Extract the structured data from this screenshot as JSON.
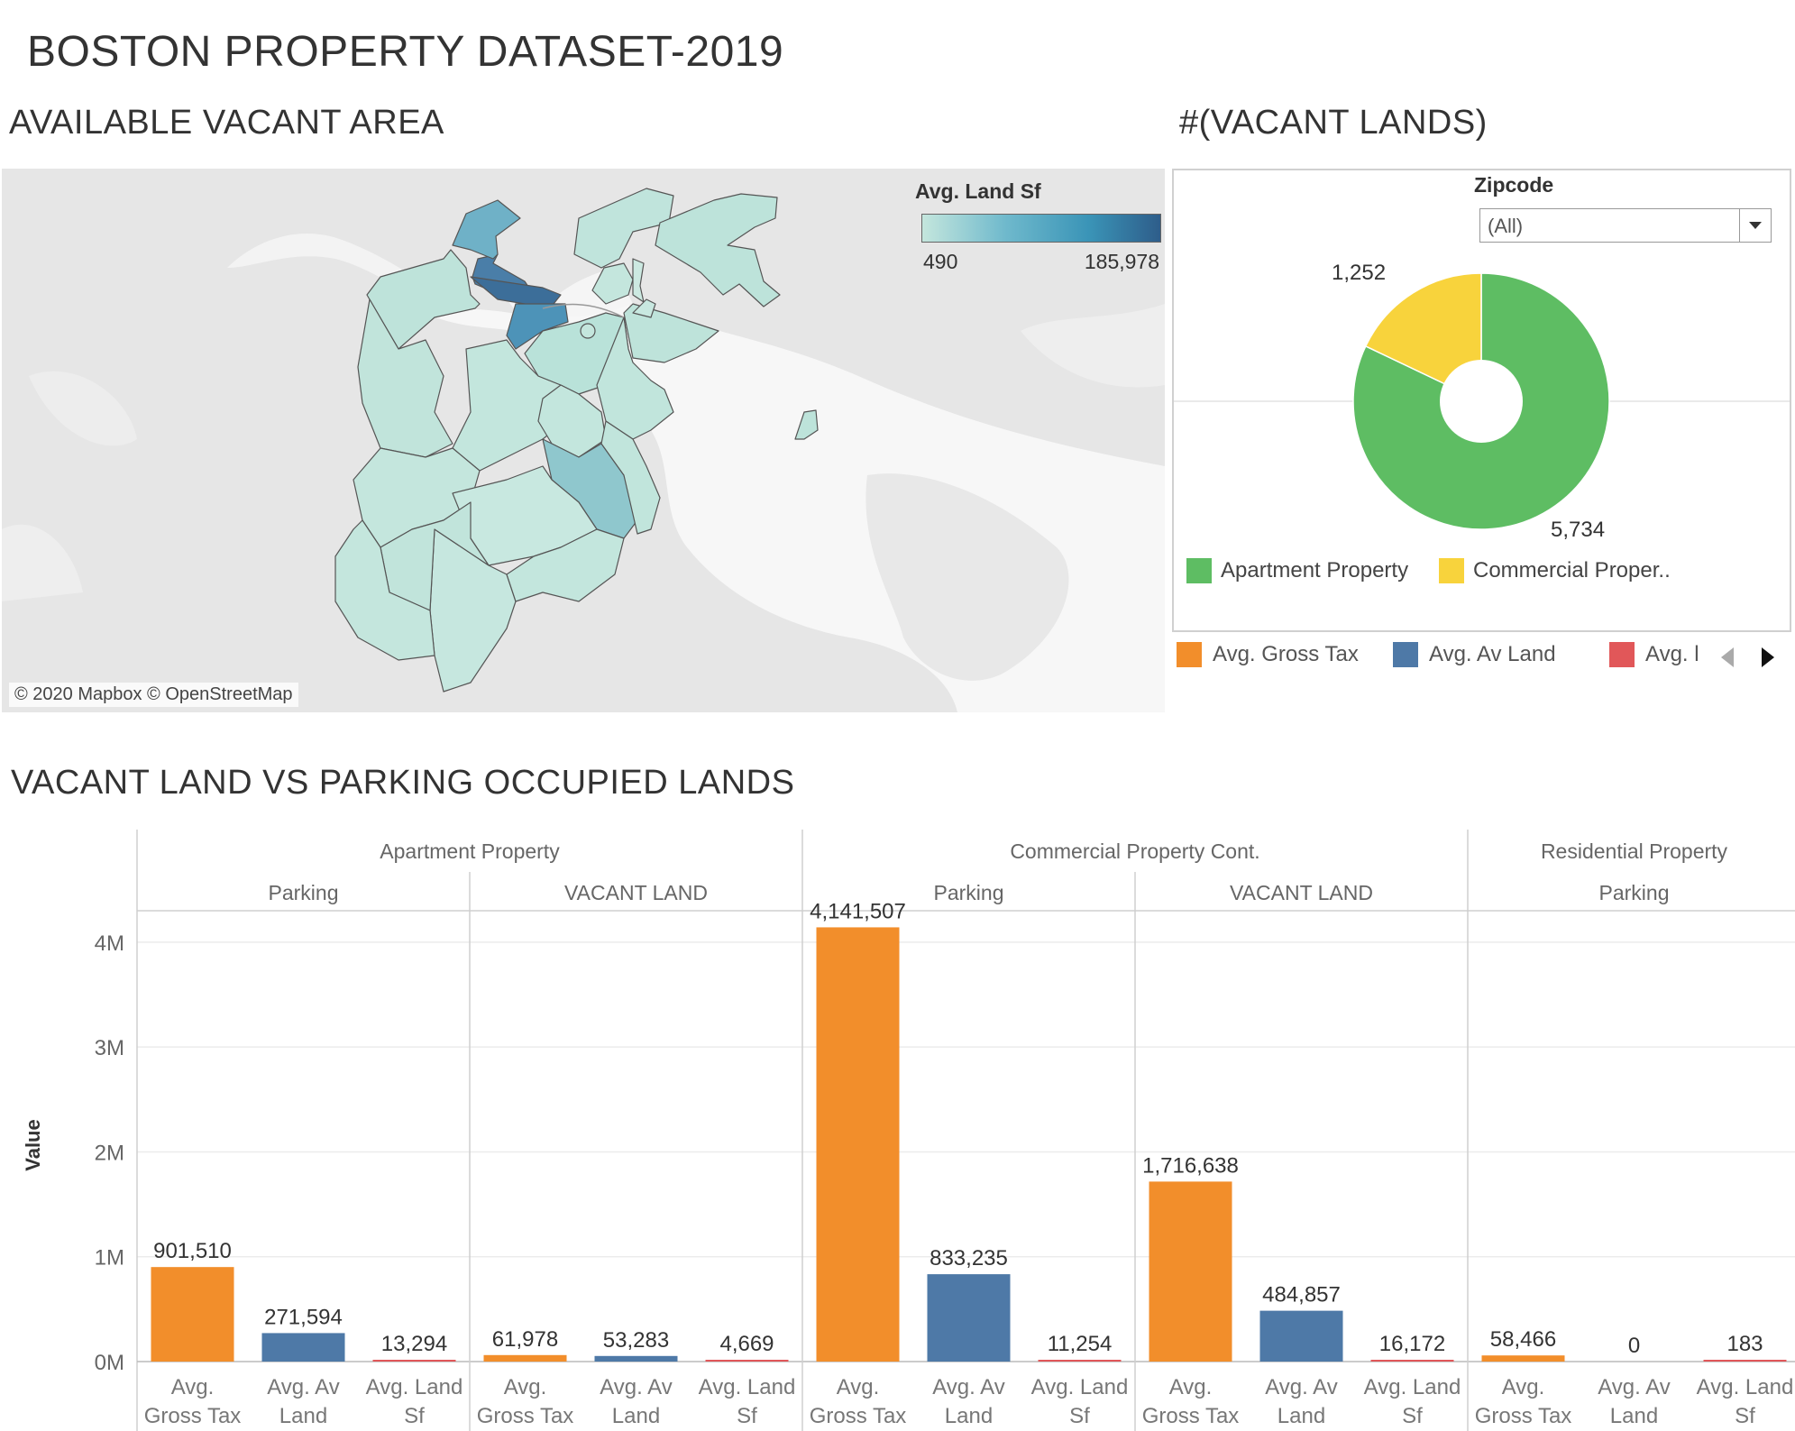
{
  "dashboard": {
    "title": "BOSTON PROPERTY DATASET-2019"
  },
  "map": {
    "title": "AVAILABLE VACANT AREA",
    "legend_title": "Avg. Land Sf",
    "legend_min": "490",
    "legend_max": "185,978",
    "color_low": "#c4e6dd",
    "color_high": "#2e5d8a",
    "attribution": "© 2020 Mapbox © OpenStreetMap"
  },
  "donut": {
    "title": "#(VACANT LANDS)",
    "filter_label": "Zipcode",
    "filter_value": "(All)",
    "legend": [
      {
        "label": "Apartment Property",
        "color": "#5ebd63"
      },
      {
        "label": "Commercial Proper..",
        "color": "#f8d33c"
      }
    ],
    "chart_data": {
      "type": "pie",
      "categories": [
        "Apartment Property",
        "Commercial Property Cont."
      ],
      "values": [
        5734,
        1252
      ],
      "labels": [
        "5,734",
        "1,252"
      ]
    }
  },
  "bar_legend": {
    "items": [
      {
        "label": "Avg. Gross Tax",
        "color": "#f28e2b"
      },
      {
        "label": "Avg. Av Land",
        "color": "#4e79a7"
      },
      {
        "label": "Avg. l",
        "color": "#e15759"
      }
    ],
    "prev_icon": "triangle-left-icon",
    "next_icon": "triangle-right-icon"
  },
  "bars": {
    "title": "VACANT LAND VS PARKING OCCUPIED LANDS",
    "chart_data": {
      "type": "bar",
      "ylabel": "Value",
      "ylim": [
        0,
        4300000
      ],
      "yticks": [
        0,
        1000000,
        2000000,
        3000000,
        4000000
      ],
      "ytick_labels": [
        "0M",
        "1M",
        "2M",
        "3M",
        "4M"
      ],
      "categories": [
        "Avg. Gross Tax",
        "Avg. Av Land",
        "Avg. Land Sf"
      ],
      "category_label_lines": [
        [
          "Avg.",
          "Gross Tax"
        ],
        [
          "Avg. Av",
          "Land"
        ],
        [
          "Avg. Land",
          "Sf"
        ]
      ],
      "colors": [
        "#f28e2b",
        "#4e79a7",
        "#e15759"
      ],
      "groups": [
        {
          "label": "Apartment Property",
          "panels": [
            {
              "label": "Parking",
              "values": [
                901510,
                271594,
                13294
              ],
              "labels": [
                "901,510",
                "271,594",
                "13,294"
              ]
            },
            {
              "label": "VACANT LAND",
              "values": [
                61978,
                53283,
                4669
              ],
              "labels": [
                "61,978",
                "53,283",
                "4,669"
              ]
            }
          ]
        },
        {
          "label": "Commercial Property Cont.",
          "panels": [
            {
              "label": "Parking",
              "values": [
                4141507,
                833235,
                11254
              ],
              "labels": [
                "4,141,507",
                "833,235",
                "11,254"
              ]
            },
            {
              "label": "VACANT LAND",
              "values": [
                1716638,
                484857,
                16172
              ],
              "labels": [
                "1,716,638",
                "484,857",
                "16,172"
              ]
            }
          ]
        },
        {
          "label": "Residential Property",
          "panels": [
            {
              "label": "Parking",
              "values": [
                58466,
                0,
                183
              ],
              "labels": [
                "58,466",
                "0",
                "183"
              ]
            }
          ]
        }
      ]
    }
  }
}
